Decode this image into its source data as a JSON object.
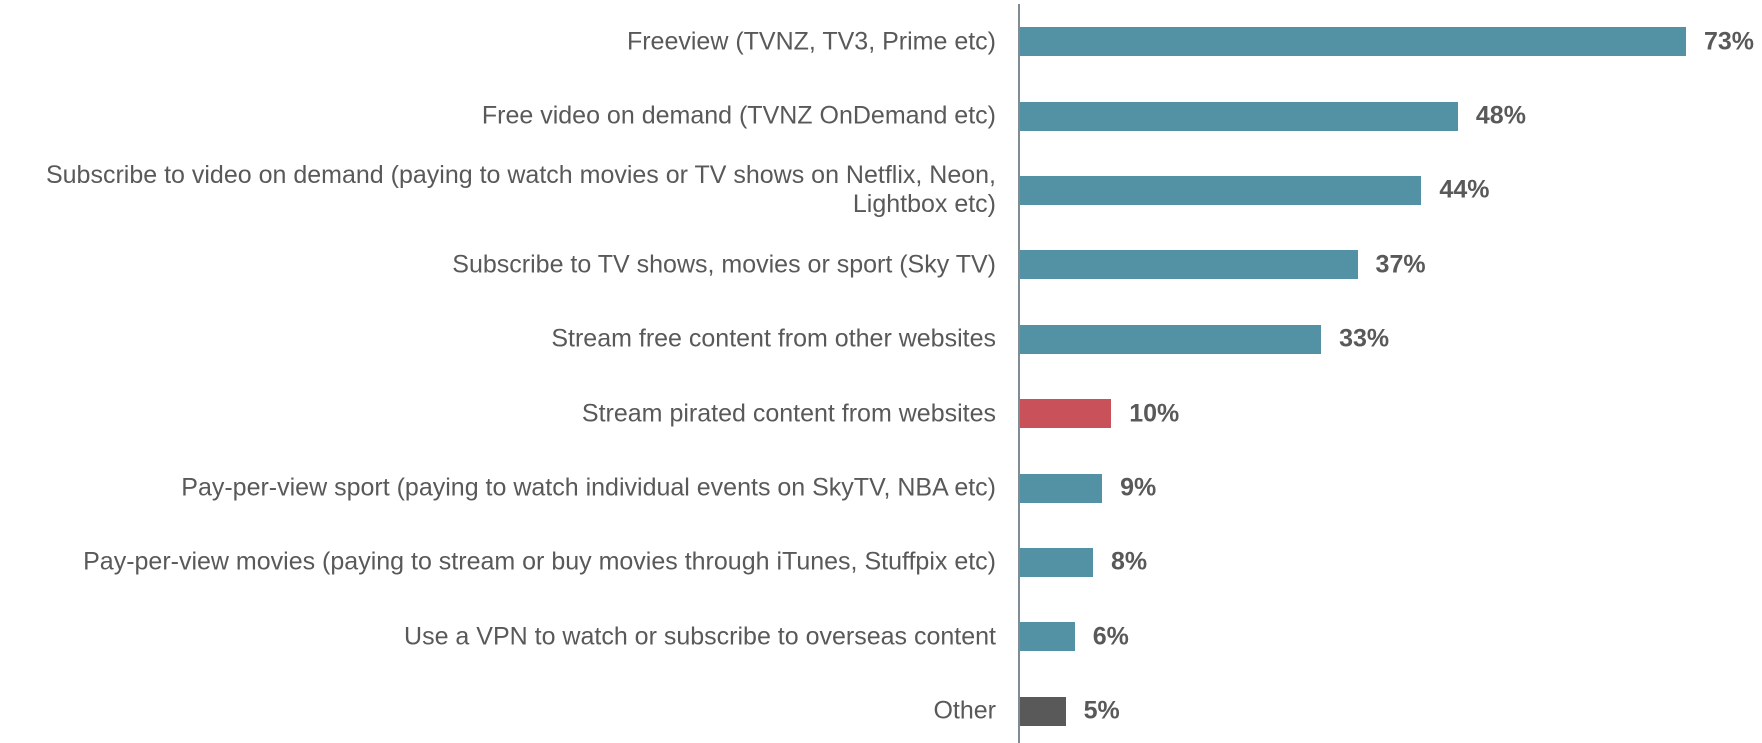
{
  "chart_data": {
    "type": "bar",
    "orientation": "horizontal",
    "categories": [
      "Freeview (TVNZ, TV3, Prime etc)",
      "Free video on demand (TVNZ OnDemand etc)",
      "Subscribe to video on demand (paying to watch movies or TV shows on Netflix, Neon, Lightbox etc)",
      "Subscribe to TV shows, movies or sport (Sky TV)",
      "Stream free content from other websites",
      "Stream pirated content from websites",
      "Pay-per-view sport (paying to watch individual events on SkyTV, NBA etc)",
      "Pay-per-view movies (paying to stream or buy movies through iTunes, Stuffpix etc)",
      "Use a VPN to watch or subscribe to overseas content",
      "Other"
    ],
    "values": [
      73,
      48,
      44,
      37,
      33,
      10,
      9,
      8,
      6,
      5
    ],
    "value_labels": [
      "73%",
      "48%",
      "44%",
      "37%",
      "33%",
      "10%",
      "9%",
      "8%",
      "6%",
      "5%"
    ],
    "colors": [
      "#5292a4",
      "#5292a4",
      "#5292a4",
      "#5292a4",
      "#5292a4",
      "#c9515a",
      "#5292a4",
      "#5292a4",
      "#5292a4",
      "#595959"
    ]
  }
}
